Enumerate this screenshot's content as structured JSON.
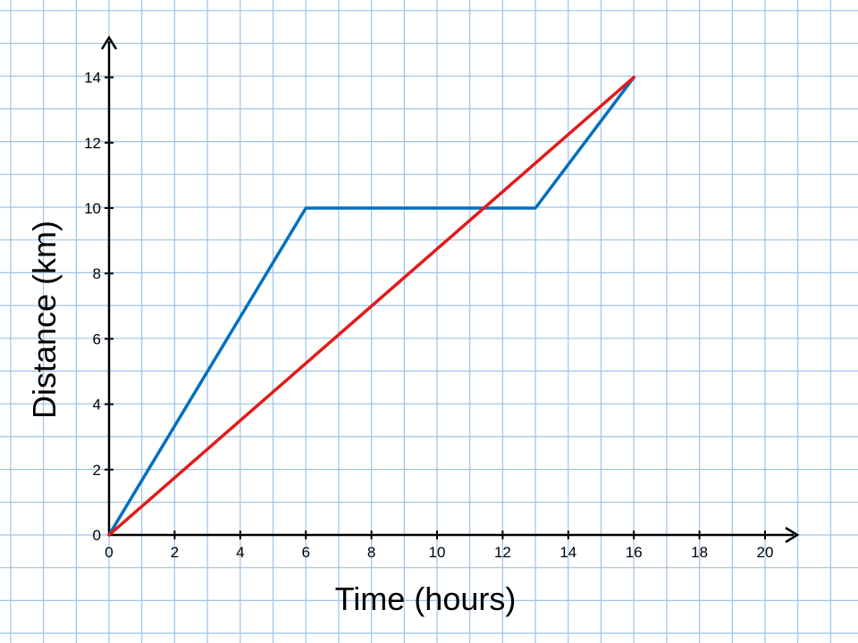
{
  "chart_data": {
    "type": "line",
    "title": "",
    "xlabel": "Time (hours)",
    "ylabel": "Distance (km)",
    "xlim": [
      0,
      20
    ],
    "ylim": [
      0,
      14
    ],
    "xticks": [
      0,
      2,
      4,
      6,
      8,
      10,
      12,
      14,
      16,
      18,
      20
    ],
    "yticks": [
      0,
      2,
      4,
      6,
      8,
      10,
      12,
      14
    ],
    "x_tick_labels": [
      "0",
      "2",
      "4",
      "6",
      "8",
      "10",
      "12",
      "14",
      "16",
      "18",
      "20"
    ],
    "y_tick_labels": [
      "0",
      "2",
      "4",
      "6",
      "8",
      "10",
      "12",
      "14"
    ],
    "grid": true,
    "background": "graph paper",
    "series": [
      {
        "color": "#0070C0",
        "points": [
          [
            0,
            0
          ],
          [
            6,
            10
          ],
          [
            13,
            10
          ],
          [
            16,
            14
          ]
        ]
      },
      {
        "color": "#E31A1A",
        "points": [
          [
            0,
            0
          ],
          [
            16,
            14
          ]
        ]
      }
    ],
    "colors": {
      "grid": "#9DC3E6",
      "axis": "#000000"
    }
  }
}
